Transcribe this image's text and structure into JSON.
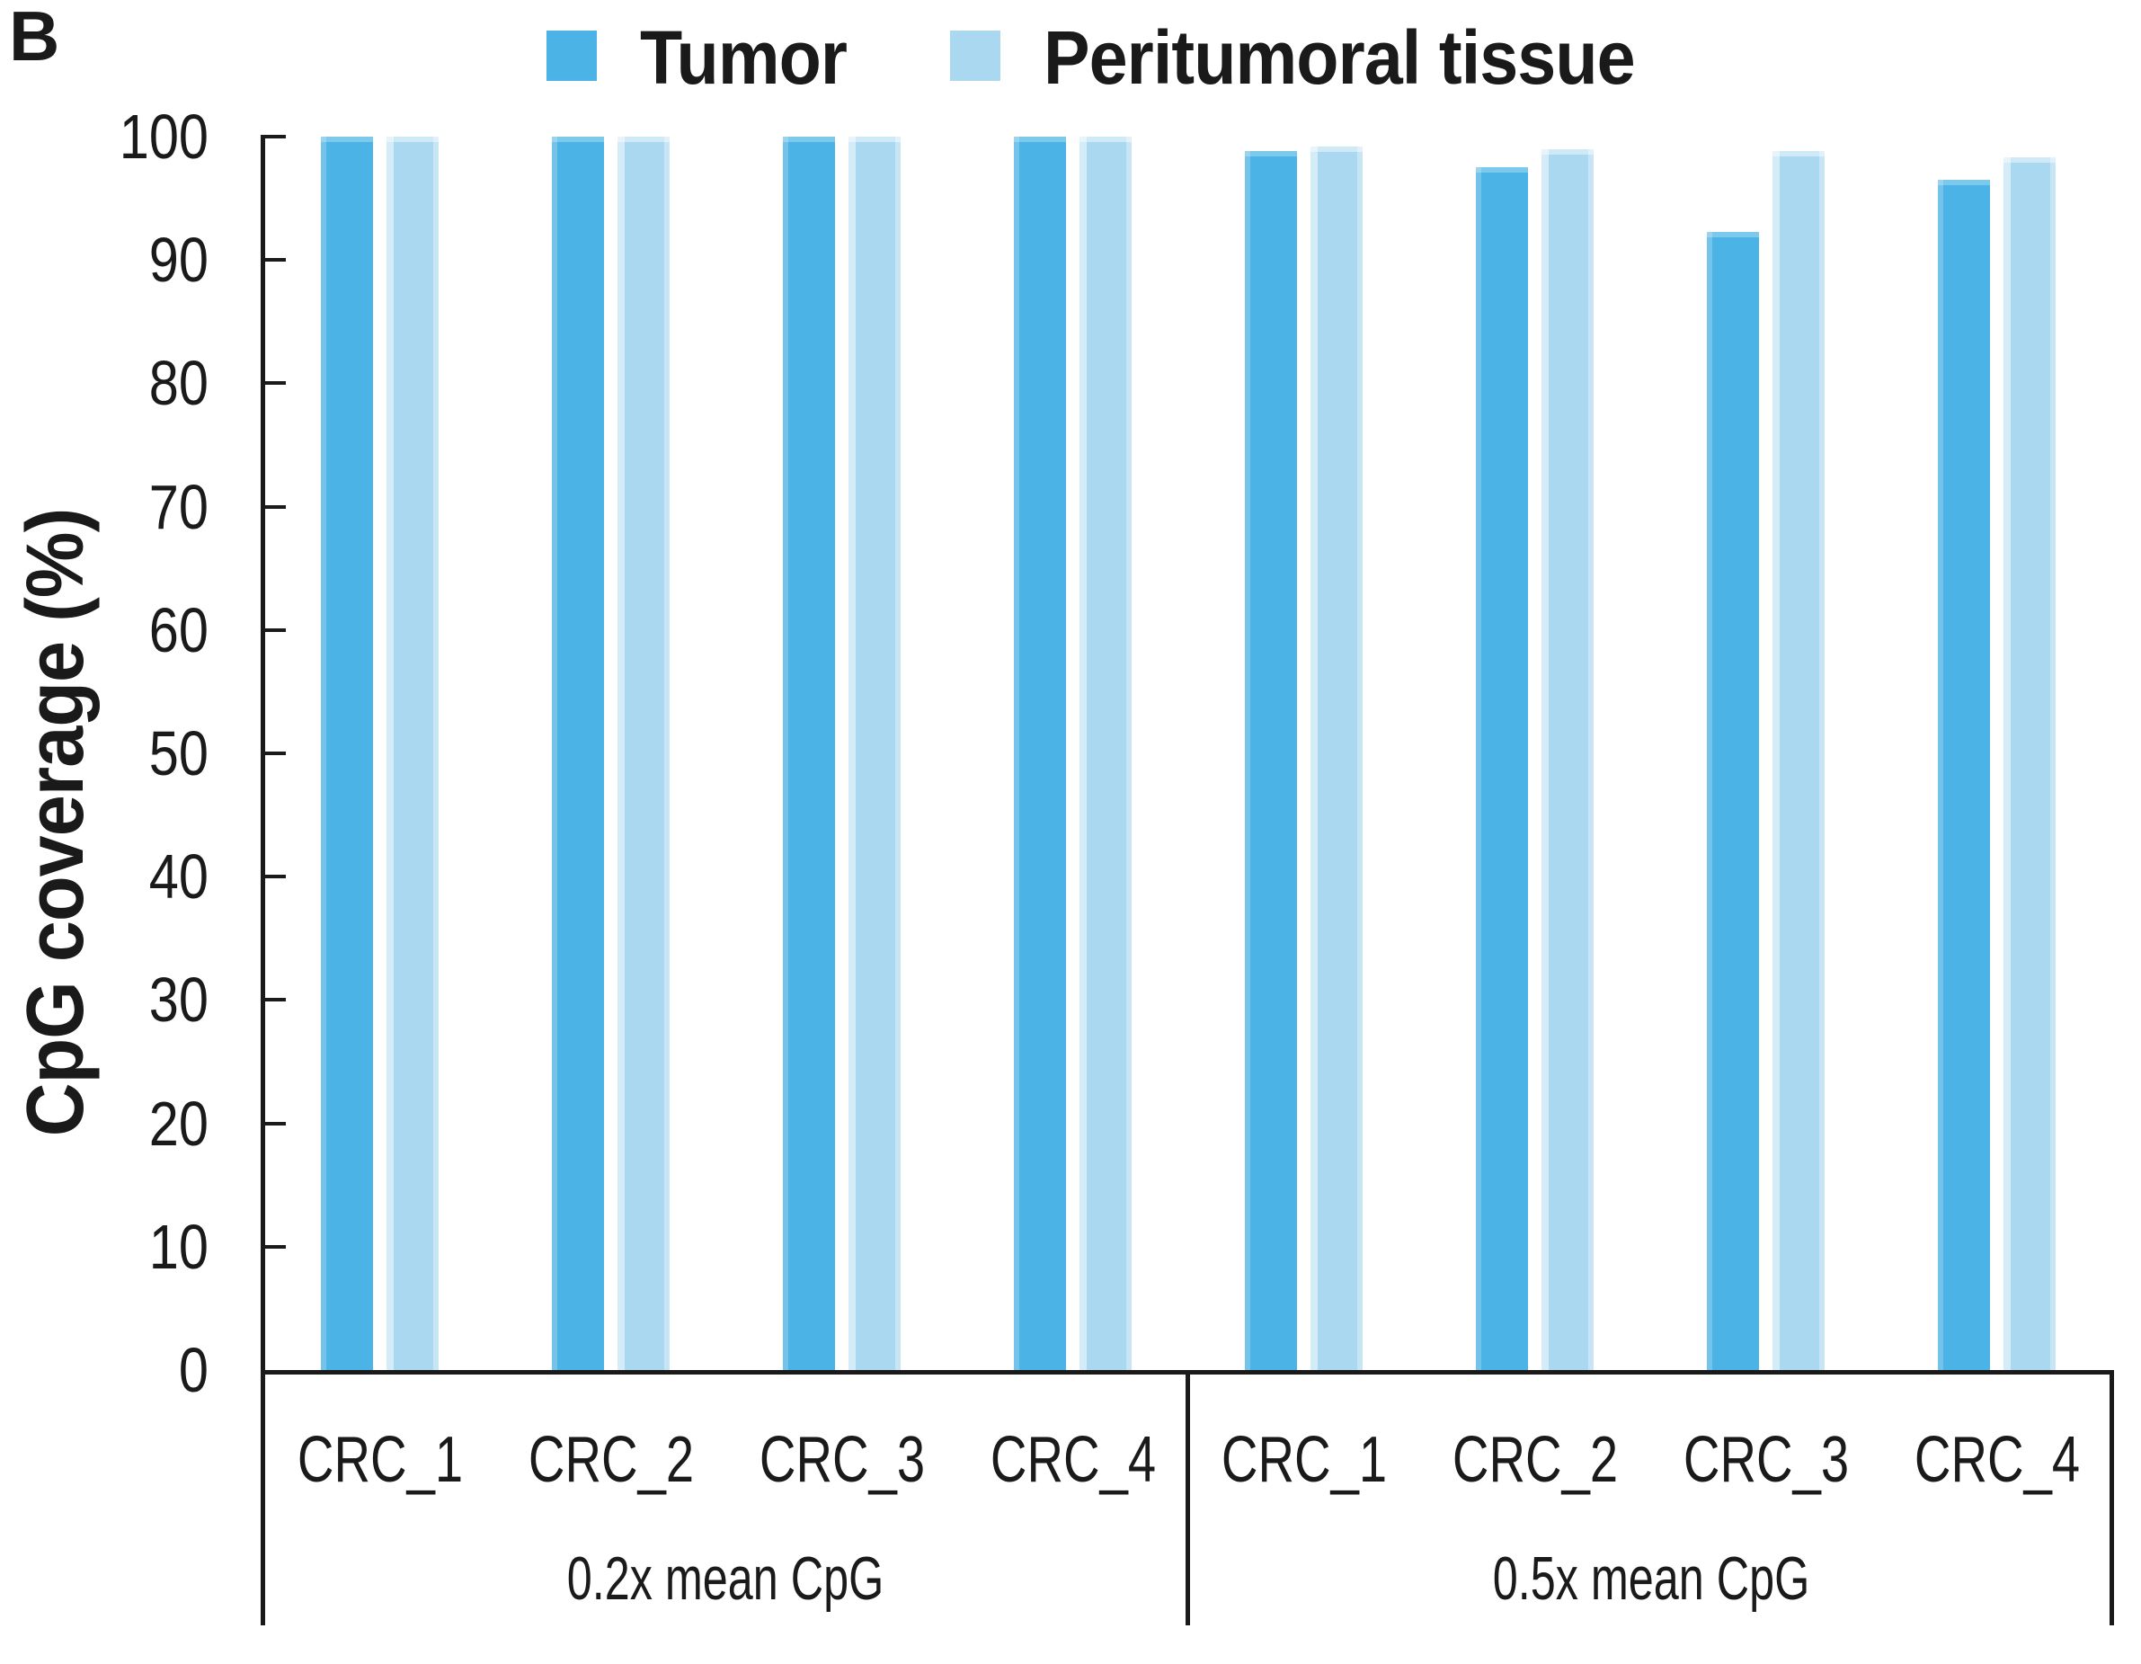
{
  "panel_label": "B",
  "chart_data": {
    "type": "bar",
    "title": "",
    "ylabel": "CpG coverage (%)",
    "xlabel": "",
    "ylim": [
      0,
      100
    ],
    "yticks": [
      0,
      10,
      20,
      30,
      40,
      50,
      60,
      70,
      80,
      90,
      100
    ],
    "grid": false,
    "legend_position": "top",
    "legend": [
      {
        "label": "Tumor",
        "color": "#4cb3e6"
      },
      {
        "label": "Peritumoral tissue",
        "color": "#a9d8f0"
      }
    ],
    "axis_color": "#1a1a1a",
    "text_color": "#1a1a1a",
    "groups": [
      {
        "label": "0.2x mean CpG",
        "categories": [
          "CRC_1",
          "CRC_2",
          "CRC_3",
          "CRC_4"
        ],
        "series": [
          {
            "name": "Tumor",
            "values": [
              100,
              100,
              100,
              100
            ]
          },
          {
            "name": "Peritumoral tissue",
            "values": [
              100,
              100,
              100,
              100
            ]
          }
        ]
      },
      {
        "label": "0.5x mean CpG",
        "categories": [
          "CRC_1",
          "CRC_2",
          "CRC_3",
          "CRC_4"
        ],
        "series": [
          {
            "name": "Tumor",
            "values": [
              98.8,
              97.5,
              92.3,
              96.5
            ]
          },
          {
            "name": "Peritumoral tissue",
            "values": [
              99.2,
              99.0,
              98.8,
              98.3
            ]
          }
        ]
      }
    ]
  }
}
